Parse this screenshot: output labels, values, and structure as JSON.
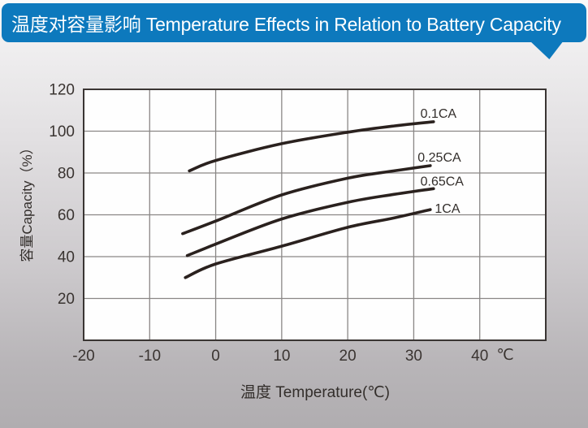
{
  "banner": {
    "title": "温度对容量影响 Temperature Effects in Relation to Battery Capacity",
    "bg_color": "#0d79bd",
    "text_color": "#ffffff"
  },
  "chart_data": {
    "type": "line",
    "title": "温度对容量影响 Temperature Effects in Relation to Battery Capacity",
    "xlabel": "温度  Temperature(℃)",
    "ylabel": "容量Capacity（%）",
    "x_axis_unit": "℃",
    "xlim": [
      -20,
      50
    ],
    "ylim": [
      0,
      120
    ],
    "x_ticks": [
      "-20",
      "-10",
      "0",
      "10",
      "20",
      "30",
      "40"
    ],
    "x_tick_values": [
      -20,
      -10,
      0,
      10,
      20,
      30,
      40
    ],
    "y_ticks": [
      "20",
      "40",
      "60",
      "80",
      "100",
      "120"
    ],
    "y_tick_values": [
      20,
      40,
      60,
      80,
      100,
      120
    ],
    "grid": true,
    "legend_position": "inline-labels",
    "series": [
      {
        "name": "0.1CA",
        "points": [
          [
            -4,
            81
          ],
          [
            0,
            86
          ],
          [
            10,
            94
          ],
          [
            20,
            99.5
          ],
          [
            27,
            102.5
          ],
          [
            33,
            104.5
          ]
        ],
        "label_at": [
          31,
          106.5
        ]
      },
      {
        "name": "0.25CA",
        "points": [
          [
            -5,
            51
          ],
          [
            0,
            57
          ],
          [
            10,
            69.5
          ],
          [
            20,
            77.5
          ],
          [
            27,
            81
          ],
          [
            32.5,
            83.5
          ]
        ],
        "label_at": [
          30.6,
          85.5
        ]
      },
      {
        "name": "0.65CA",
        "points": [
          [
            -4.3,
            40.5
          ],
          [
            0,
            46
          ],
          [
            10,
            58
          ],
          [
            20,
            66
          ],
          [
            27,
            69.8
          ],
          [
            33,
            72.5
          ]
        ],
        "label_at": [
          31,
          74
        ]
      },
      {
        "name": "1CA",
        "points": [
          [
            -4.6,
            30
          ],
          [
            0,
            36.5
          ],
          [
            10,
            45
          ],
          [
            20,
            54
          ],
          [
            27,
            58.5
          ],
          [
            32.5,
            62.5
          ]
        ],
        "label_at": [
          33.2,
          61
        ]
      }
    ],
    "line_color": "#2a211e",
    "grid_color": "#8a8786",
    "border_color": "#3a3533",
    "plot_bg_color": "#fefefe",
    "tick_label_color": "#3a3431",
    "axis_title_color": "#332e2b"
  }
}
